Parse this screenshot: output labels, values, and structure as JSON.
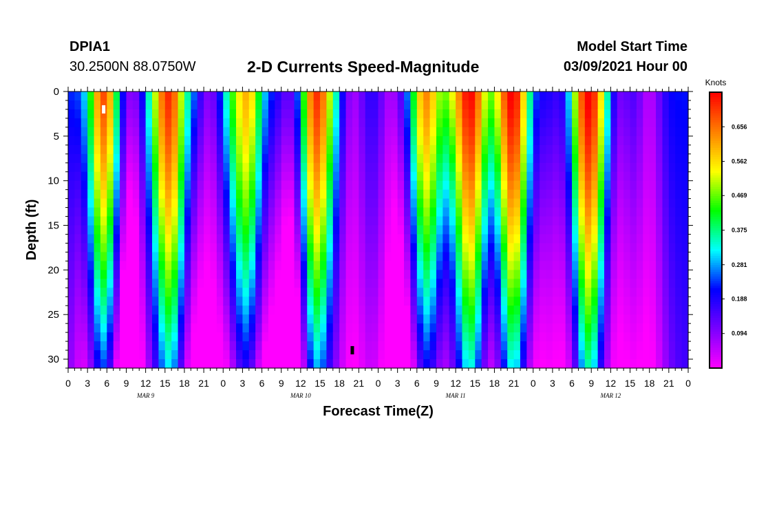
{
  "header": {
    "station_id": "DPIA1",
    "coordinates": "30.2500N 88.0750W",
    "title": "2-D Currents Speed-Magnitude",
    "model_start_label": "Model Start Time",
    "model_start_value": "03/09/2021 Hour 00"
  },
  "chart_data": {
    "type": "heatmap",
    "title": "2-D Currents Speed-Magnitude",
    "xlabel": "Forecast Time(Z)",
    "ylabel": "Depth (ft)",
    "x_unit": "hours from model start",
    "xlim": [
      0,
      96
    ],
    "ylim": [
      31,
      0
    ],
    "x_ticks": [
      0,
      3,
      6,
      9,
      12,
      15,
      18,
      21,
      24,
      27,
      30,
      33,
      36,
      39,
      42,
      45,
      48,
      51,
      54,
      57,
      60,
      63,
      66,
      69,
      72,
      75,
      78,
      81,
      84,
      87,
      90,
      93,
      96
    ],
    "x_tick_labels": [
      "0",
      "3",
      "6",
      "9",
      "12",
      "15",
      "18",
      "21",
      "0",
      "3",
      "6",
      "9",
      "12",
      "15",
      "18",
      "21",
      "0",
      "3",
      "6",
      "9",
      "12",
      "15",
      "18",
      "21",
      "0",
      "3",
      "6",
      "9",
      "12",
      "15",
      "18",
      "21",
      "0"
    ],
    "y_ticks": [
      0,
      5,
      10,
      15,
      20,
      25,
      30
    ],
    "date_labels": [
      {
        "hour": 12,
        "label": "MAR 9"
      },
      {
        "hour": 36,
        "label": "MAR 10"
      },
      {
        "hour": 60,
        "label": "MAR 11"
      },
      {
        "hour": 84,
        "label": "MAR 12"
      }
    ],
    "colorbar": {
      "title": "Knots",
      "min": 0,
      "max": 0.75,
      "ticks": [
        0.656,
        0.562,
        0.469,
        0.375,
        0.281,
        0.188,
        0.094
      ],
      "colors": [
        "#ff00ff",
        "#7a00ff",
        "#0000ff",
        "#00ffff",
        "#00ff00",
        "#ffff00",
        "#ff8000",
        "#ff0000"
      ]
    },
    "max_speed_hours": [
      5.5,
      16,
      27.5,
      38,
      55.5,
      62.5,
      69,
      80.5
    ],
    "min_speed_hours": [
      3,
      8,
      10,
      18,
      22,
      26.5,
      30,
      34.5,
      36,
      44,
      50,
      53,
      57,
      65,
      72,
      77,
      85,
      90
    ],
    "surface_max_marker": {
      "hour": 5.5,
      "depth_ft": 2
    },
    "min_marker": {
      "hour": 44,
      "depth_ft": 29
    }
  },
  "colors": {
    "frame": "#000000",
    "max_marker": "#ffffff",
    "min_marker": "#000000"
  }
}
